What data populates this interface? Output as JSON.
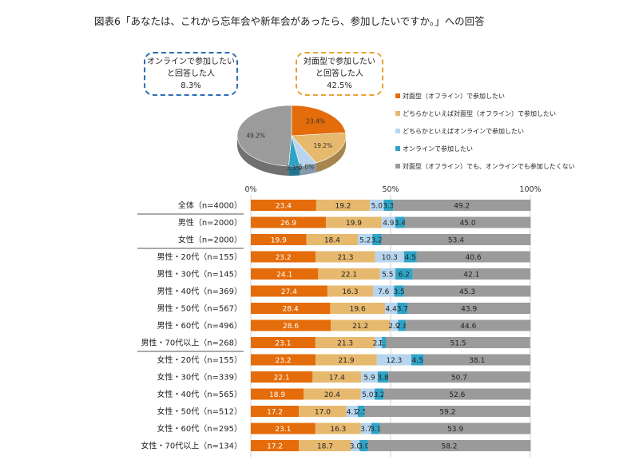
{
  "title": "図表6「あなたは、これから忘年会や新年会があったら、参加したいですか。」への回答",
  "callouts": {
    "online": {
      "line1": "オンラインで参加したい",
      "line2": "と回答した人",
      "value": "8.3%"
    },
    "offline": {
      "line1": "対面型で参加したい",
      "line2": "と回答した人",
      "value": "42.5%"
    }
  },
  "colors": [
    "#e46c0a",
    "#e6b96e",
    "#b7d5ee",
    "#2fa3c6",
    "#9b9b9b"
  ],
  "chart_data": [
    {
      "type": "pie",
      "labels": [
        "23.4%",
        "19.2%",
        "5.0%",
        "3.3%",
        "49.2%"
      ],
      "values": [
        23.4,
        19.2,
        5.0,
        3.3,
        49.2
      ]
    },
    {
      "type": "bar",
      "orientation": "horizontal",
      "stacked": true,
      "xlim": [
        0,
        100
      ],
      "tick_labels": [
        "0%",
        "50%",
        "100%"
      ],
      "series": [
        {
          "name": "対面型（オフライン）で参加したい"
        },
        {
          "name": "どちらかといえば対面型（オフライン）で参加したい"
        },
        {
          "name": "どちらかといえばオンラインで参加したい"
        },
        {
          "name": "オンラインで参加したい"
        },
        {
          "name": "対面型（オフライン）でも、オンラインでも参加したくない"
        }
      ],
      "categories": [
        "全体（n=4000）",
        "男性（n=2000）",
        "女性（n=2000）",
        "男性・20代（n=155）",
        "男性・30代（n=145）",
        "男性・40代（n=369）",
        "男性・50代（n=567）",
        "男性・60代（n=496）",
        "男性・70代以上（n=268）",
        "女性・20代（n=155）",
        "女性・30代（n=339）",
        "女性・40代（n=565）",
        "女性・50代（n=512）",
        "女性・60代（n=295）",
        "女性・70代以上（n=134）"
      ],
      "rows": [
        [
          23.4,
          19.2,
          5.0,
          3.3,
          49.2
        ],
        [
          26.9,
          19.9,
          4.9,
          3.4,
          45.0
        ],
        [
          19.9,
          18.4,
          5.2,
          3.2,
          53.4
        ],
        [
          23.2,
          21.3,
          10.3,
          4.5,
          40.6
        ],
        [
          24.1,
          22.1,
          5.5,
          6.2,
          42.1
        ],
        [
          27.4,
          16.3,
          7.6,
          3.5,
          45.3
        ],
        [
          28.4,
          19.6,
          4.4,
          3.7,
          43.9
        ],
        [
          28.6,
          21.2,
          2.9,
          2.8,
          44.6
        ],
        [
          23.1,
          21.3,
          2.5,
          1.5,
          51.5
        ],
        [
          23.2,
          21.9,
          12.3,
          4.5,
          38.1
        ],
        [
          22.1,
          17.4,
          5.9,
          3.8,
          50.7
        ],
        [
          18.9,
          20.4,
          5.0,
          3.2,
          52.6
        ],
        [
          17.2,
          17.0,
          4.1,
          2.5,
          59.2
        ],
        [
          23.1,
          16.3,
          3.7,
          3.1,
          53.9
        ],
        [
          17.2,
          18.7,
          3.0,
          3.0,
          58.2
        ]
      ],
      "labels": [
        [
          "23.4",
          "19.2",
          "5.0",
          "3.3",
          "49.2"
        ],
        [
          "26.9",
          "19.9",
          "4.9",
          "3.4",
          "45.0"
        ],
        [
          "19.9",
          "18.4",
          "5.2",
          "3.2",
          "53.4"
        ],
        [
          "23.2",
          "21.3",
          "10.3",
          "4.5",
          "40.6"
        ],
        [
          "24.1",
          "22.1",
          "5.5",
          "6.2",
          "42.1"
        ],
        [
          "27.4",
          "16.3",
          "7.6",
          "3.5",
          "45.3"
        ],
        [
          "28.4",
          "19.6",
          "4.4",
          "3.7",
          "43.9"
        ],
        [
          "28.6",
          "21.2",
          "2.9",
          "2.8",
          "44.6"
        ],
        [
          "23.1",
          "21.3",
          "2.5",
          "1.5",
          "51.5"
        ],
        [
          "23.2",
          "21.9",
          "12.3",
          "4.5",
          "38.1"
        ],
        [
          "22.1",
          "17.4",
          "5.9",
          "3.8",
          "50.7"
        ],
        [
          "18.9",
          "20.4",
          "5.0",
          "3.2",
          "52.6"
        ],
        [
          "17.2",
          "17.0",
          "4.1",
          "2.5",
          "59.2"
        ],
        [
          "23.1",
          "16.3",
          "3.7",
          "3.1",
          "53.9"
        ],
        [
          "17.2",
          "18.7",
          "3.0",
          "3.0",
          "58.2"
        ]
      ]
    }
  ]
}
